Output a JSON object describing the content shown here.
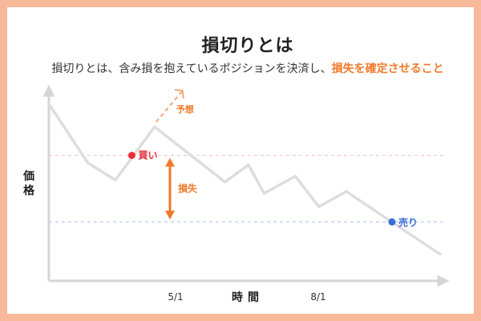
{
  "header": {
    "title": "損切りとは",
    "description_prefix": "損切りとは、含み損を抱えているポジションを決済し、",
    "description_highlight": "損失を確定させること"
  },
  "colors": {
    "border": "#f8b89a",
    "accent": "#f07a2b",
    "line": "#dddddd",
    "axis": "#d6d6d6",
    "buy": "#e8313b",
    "sell": "#3a6fd8",
    "buy_guide": "#f6c7cd",
    "sell_guide": "#b8cdef"
  },
  "chart_data": {
    "type": "line",
    "title": "",
    "xlabel": "時間",
    "ylabel": "価格",
    "x_ticks": [
      "5/1",
      "8/1"
    ],
    "grid": false,
    "series": [
      {
        "points": [
          {
            "x": 0.0,
            "y": 0.93
          },
          {
            "x": 0.1,
            "y": 0.62
          },
          {
            "x": 0.17,
            "y": 0.53
          },
          {
            "x": 0.27,
            "y": 0.81
          },
          {
            "x": 0.45,
            "y": 0.52
          },
          {
            "x": 0.51,
            "y": 0.61
          },
          {
            "x": 0.55,
            "y": 0.46
          },
          {
            "x": 0.63,
            "y": 0.55
          },
          {
            "x": 0.69,
            "y": 0.39
          },
          {
            "x": 0.76,
            "y": 0.47
          },
          {
            "x": 1.0,
            "y": 0.14
          }
        ]
      }
    ],
    "annotations": {
      "buy": {
        "label": "買い",
        "x": 0.212,
        "y": 0.66
      },
      "sell": {
        "label": "売り",
        "x": 0.877,
        "y": 0.31
      },
      "forecast": {
        "label": "予想"
      },
      "loss": {
        "label": "損失"
      }
    }
  }
}
